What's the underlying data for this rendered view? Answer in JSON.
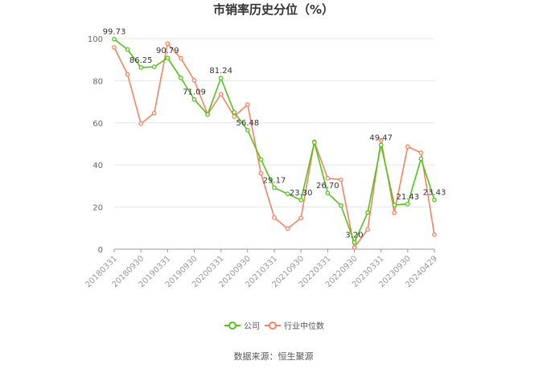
{
  "chart_data": {
    "type": "line",
    "title": "市销率历史分位（%）",
    "source": "数据来源：恒生聚源",
    "ylim": [
      0,
      100
    ],
    "yticks": [
      0,
      20,
      40,
      60,
      80,
      100
    ],
    "grid": true,
    "legend_position": "bottom",
    "x_tick_labels": [
      "20180331",
      "20180930",
      "20190331",
      "20190930",
      "20200331",
      "20200930",
      "20210331",
      "20210930",
      "20220331",
      "20220930",
      "20230331",
      "20230930",
      "20240429"
    ],
    "x_tick_indices": [
      0,
      2,
      4,
      6,
      8,
      10,
      12,
      14,
      16,
      18,
      20,
      22,
      24
    ],
    "series": [
      {
        "name": "公司",
        "color": "#52c41a",
        "values": [
          99.73,
          94.8,
          86.25,
          86.6,
          90.79,
          81.3,
          71.09,
          64.0,
          81.24,
          65.0,
          56.48,
          42.6,
          29.17,
          26.3,
          23.3,
          50.7,
          26.7,
          20.7,
          3.2,
          17.4,
          49.47,
          21.0,
          21.43,
          43.0,
          23.43
        ],
        "labels": {
          "0": "99.73",
          "2": "86.25",
          "4": "90.79",
          "6": "71.09",
          "8": "81.24",
          "10": "56.48",
          "12": "29.17",
          "14": "23.30",
          "16": "26.70",
          "18": "3.20",
          "20": "49.47",
          "22": "21.43",
          "24": "23.43"
        }
      },
      {
        "name": "行业中位数",
        "color": "#f4845f",
        "values": [
          95.8,
          83.0,
          59.6,
          64.6,
          97.6,
          90.6,
          80.2,
          64.0,
          73.6,
          63.0,
          68.7,
          36.0,
          15.0,
          9.8,
          14.8,
          51.0,
          33.7,
          33.0,
          0.8,
          9.4,
          51.7,
          17.3,
          48.7,
          45.8,
          6.9
        ]
      }
    ]
  }
}
